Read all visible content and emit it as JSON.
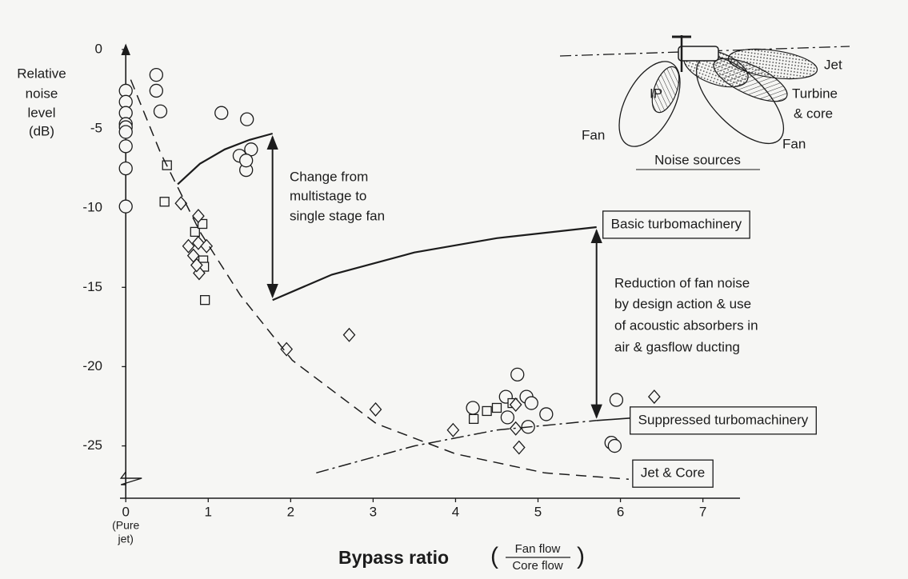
{
  "chart_data": {
    "type": "scatter",
    "ylabel": [
      "Relative",
      "noise",
      "level",
      "(dB)"
    ],
    "xlabel": "Bypass ratio",
    "xlabel_fraction": {
      "numerator": "Fan flow",
      "denominator": "Core flow"
    },
    "xtick_note": [
      "(Pure",
      "jet)"
    ],
    "xlim": [
      -0.07,
      7.45
    ],
    "ylim": [
      -28.3,
      0.6
    ],
    "xticks": [
      0,
      1,
      2,
      3,
      4,
      5,
      6,
      7
    ],
    "yticks": [
      0,
      -5,
      -10,
      -15,
      -20,
      -25
    ],
    "series": [
      {
        "marker": "circle",
        "color": "#1c1c1c",
        "x": [
          0,
          0,
          0,
          0,
          0,
          0,
          0,
          0,
          0,
          0.37,
          0.37,
          0.42,
          1.16,
          1.47,
          1.38,
          1.52,
          1.46,
          1.46,
          4.21,
          4.61,
          4.63,
          4.75,
          4.86,
          4.88,
          4.92,
          5.1,
          5.95,
          5.89,
          5.93
        ],
        "values": [
          -2.6,
          -3.3,
          -4.0,
          -4.7,
          -4.9,
          -5.2,
          -6.1,
          -7.5,
          -9.9,
          -1.6,
          -2.6,
          -3.9,
          -4.0,
          -4.4,
          -6.7,
          -6.3,
          -7.6,
          -7.0,
          -22.6,
          -21.9,
          -23.2,
          -20.5,
          -21.9,
          -23.8,
          -22.3,
          -23.0,
          -22.1,
          -24.8,
          -25.0
        ]
      },
      {
        "marker": "square",
        "color": "#1c1c1c",
        "x": [
          0.5,
          0.47,
          0.84,
          0.93,
          0.94,
          0.95,
          0.96,
          4.22,
          4.38,
          4.5,
          4.69
        ],
        "values": [
          -7.3,
          -9.6,
          -11.5,
          -11.0,
          -13.3,
          -13.7,
          -15.8,
          -23.3,
          -22.8,
          -22.6,
          -22.3
        ]
      },
      {
        "marker": "diamond",
        "color": "#1c1c1c",
        "x": [
          0.67,
          0.88,
          0.76,
          0.82,
          0.88,
          0.98,
          0.89,
          0.86,
          1.95,
          2.71,
          3.03,
          3.97,
          4.77,
          4.73,
          4.73,
          6.41
        ],
        "values": [
          -9.7,
          -10.5,
          -12.4,
          -13.0,
          -12.2,
          -12.4,
          -14.1,
          -13.6,
          -18.9,
          -18.0,
          -22.7,
          -24.0,
          -25.1,
          -23.9,
          -22.4,
          -21.9
        ]
      },
      {
        "name": "Basic turbomachinery",
        "line": "solid",
        "color": "#1c1c1c",
        "x": [
          0.63,
          0.9,
          1.2,
          1.5,
          1.78,
          1.78,
          1.78,
          2.5,
          3.5,
          4.5,
          5.71
        ],
        "values": [
          -8.5,
          -7.2,
          -6.3,
          -5.7,
          -5.3,
          null,
          -15.8,
          -14.2,
          -12.8,
          -11.9,
          -11.2
        ]
      },
      {
        "name": "Suppressed turbomachinery",
        "line": "dashdot",
        "color": "#1c1c1c",
        "x": [
          2.31,
          3.5,
          4.5,
          5.71
        ],
        "values": [
          -26.7,
          -25.0,
          -24.0,
          -23.4
        ]
      },
      {
        "name": "Jet & Core",
        "line": "dashed",
        "color": "#1c1c1c",
        "x": [
          0.06,
          0.42,
          0.9,
          1.39,
          2.02,
          3.04,
          4.0,
          5.08,
          6.1
        ],
        "values": [
          -1.9,
          -6.5,
          -11.5,
          -15.5,
          -19.6,
          -23.6,
          -25.5,
          -26.7,
          -27.1
        ]
      }
    ],
    "annotations": [
      {
        "lines": [
          "Change from",
          "multistage to",
          "single stage fan"
        ],
        "x": 1.78,
        "y_start": -5.3,
        "y_end": -15.8
      },
      {
        "lines": [
          "Reduction of fan noise",
          "by design action & use",
          "of acoustic absorbers in",
          "air & gasflow ducting"
        ],
        "x": 5.71,
        "y_start": -11.2,
        "y_end": -23.4
      }
    ]
  },
  "inset": {
    "title": "Noise sources",
    "jet": "Jet",
    "turbine": [
      "Turbine",
      "& core"
    ],
    "fan_front": "Fan",
    "fan_rear": "Fan",
    "ip": "IP"
  }
}
